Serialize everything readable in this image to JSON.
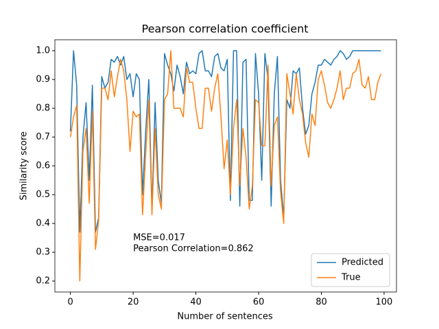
{
  "chart_data": {
    "type": "line",
    "title": "Pearson correlation coefficient",
    "xlabel": "Number of sentences",
    "ylabel": "Similarity score",
    "annotations": [
      "MSE=0.017",
      "Pearson Correlation=0.862"
    ],
    "legend": "lower right",
    "x": [
      0,
      1,
      2,
      3,
      4,
      5,
      6,
      7,
      8,
      9,
      10,
      11,
      12,
      13,
      14,
      15,
      16,
      17,
      18,
      19,
      20,
      21,
      22,
      23,
      24,
      25,
      26,
      27,
      28,
      29,
      30,
      31,
      32,
      33,
      34,
      35,
      36,
      37,
      38,
      39,
      40,
      41,
      42,
      43,
      44,
      45,
      46,
      47,
      48,
      49,
      50,
      51,
      52,
      53,
      54,
      55,
      56,
      57,
      58,
      59,
      60,
      61,
      62,
      63,
      64,
      65,
      66,
      67,
      68,
      69,
      70,
      71,
      72,
      73,
      74,
      75,
      76,
      77,
      78,
      79,
      80,
      81,
      82,
      83,
      84,
      85,
      86,
      87,
      88,
      89,
      90,
      91,
      92,
      93,
      94,
      95,
      96,
      97,
      98,
      99
    ],
    "series": [
      {
        "name": "Predicted",
        "color": "#1f77b4",
        "values": [
          0.72,
          1.0,
          0.88,
          0.37,
          0.7,
          0.82,
          0.55,
          0.88,
          0.37,
          0.42,
          0.91,
          0.87,
          0.89,
          0.97,
          0.96,
          0.98,
          0.95,
          0.98,
          0.9,
          0.92,
          0.84,
          0.92,
          0.9,
          0.5,
          0.72,
          0.9,
          0.45,
          0.82,
          0.55,
          0.47,
          0.99,
          0.95,
          0.92,
          0.86,
          0.95,
          0.91,
          0.85,
          0.96,
          0.92,
          0.93,
          0.92,
          0.99,
          1.0,
          0.93,
          0.93,
          0.91,
          0.98,
          0.99,
          0.94,
          0.93,
          0.97,
          0.48,
          1.0,
          1.0,
          0.46,
          0.96,
          0.97,
          0.48,
          0.48,
          0.99,
          0.85,
          0.55,
          0.99,
          0.9,
          0.46,
          0.85,
          0.98,
          0.55,
          0.42,
          0.83,
          0.8,
          0.93,
          0.92,
          0.94,
          0.8,
          0.71,
          0.74,
          0.85,
          0.89,
          0.95,
          0.95,
          0.97,
          0.96,
          0.95,
          0.97,
          0.98,
          1.0,
          0.99,
          0.97,
          0.98,
          1.0,
          1.0,
          1.0,
          1.0,
          1.0,
          1.0,
          1.0,
          1.0,
          1.0,
          1.0
        ]
      },
      {
        "name": "True",
        "color": "#ff7f0e",
        "values": [
          0.7,
          0.77,
          0.81,
          0.2,
          0.65,
          0.73,
          0.47,
          0.79,
          0.31,
          0.41,
          0.87,
          0.87,
          0.83,
          0.93,
          0.84,
          0.91,
          0.97,
          0.93,
          0.83,
          0.65,
          0.79,
          0.77,
          0.78,
          0.43,
          0.64,
          0.83,
          0.43,
          0.73,
          0.5,
          0.45,
          0.83,
          0.85,
          1.0,
          0.8,
          0.8,
          0.8,
          0.77,
          0.94,
          0.89,
          0.89,
          0.8,
          0.73,
          0.73,
          0.87,
          0.87,
          0.79,
          0.87,
          0.92,
          0.77,
          0.59,
          0.69,
          0.5,
          0.73,
          0.83,
          0.53,
          0.73,
          0.63,
          0.45,
          0.53,
          0.83,
          0.82,
          0.67,
          0.67,
          0.95,
          0.53,
          0.74,
          0.77,
          0.51,
          0.4,
          0.92,
          0.85,
          0.78,
          0.92,
          0.83,
          0.78,
          0.68,
          0.63,
          0.78,
          0.74,
          0.9,
          0.93,
          0.88,
          0.82,
          0.8,
          0.83,
          0.87,
          0.93,
          0.83,
          0.87,
          0.87,
          0.92,
          0.93,
          0.97,
          0.88,
          0.87,
          0.91,
          0.83,
          0.83,
          0.89,
          0.92
        ]
      }
    ],
    "xlim": [
      -4.95,
      103.95
    ],
    "ylim": [
      0.162,
      1.038
    ],
    "xticks": [
      0,
      20,
      40,
      60,
      80,
      100
    ],
    "yticks": [
      0.2,
      0.3,
      0.4,
      0.5,
      0.6,
      0.7,
      0.8,
      0.9,
      {
        "value": 1,
        "label": "1.0"
      }
    ],
    "grid": false
  }
}
